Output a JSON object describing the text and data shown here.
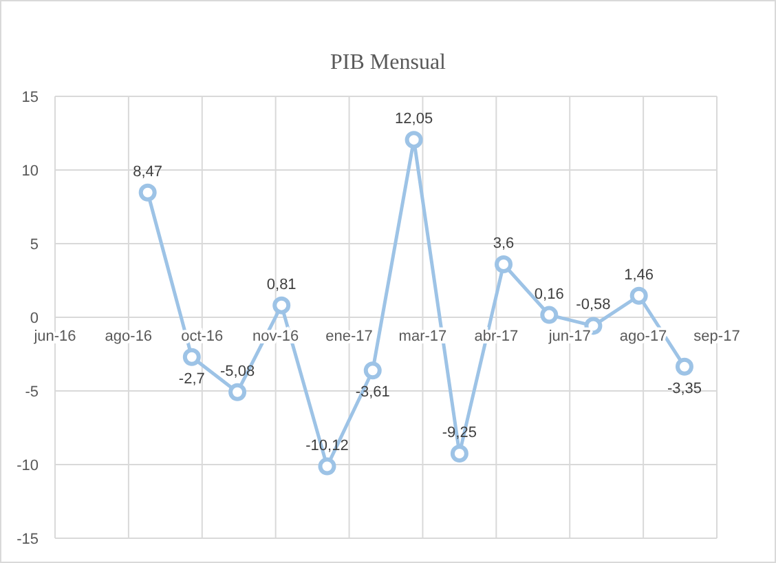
{
  "chart_data": {
    "type": "line",
    "title": "PIB Mensual",
    "x": [
      "2016-09-01",
      "2016-10-01",
      "2016-11-01",
      "2016-12-01",
      "2017-01-01",
      "2017-02-01",
      "2017-03-01",
      "2017-04-01",
      "2017-05-01",
      "2017-06-01",
      "2017-07-01",
      "2017-08-01",
      "2017-09-01"
    ],
    "series": [
      {
        "color": "#9dc3e6",
        "values": [
          8.47,
          -2.7,
          -5.08,
          0.81,
          -10.12,
          -3.61,
          12.05,
          -9.25,
          3.6,
          0.16,
          -0.58,
          1.46,
          -3.35
        ],
        "value_labels": [
          "8,47",
          "-2,7",
          "-5,08",
          "0,81",
          "-10,12",
          "-3,61",
          "12,05",
          "-9,25",
          "3,6",
          "0,16",
          "-0,58",
          "1,46",
          "-3,35"
        ]
      }
    ],
    "xlim": [
      "2016-06-30",
      "2017-09-23"
    ],
    "xticks": [
      {
        "value": "2016-06-30",
        "label": "jun-16"
      },
      {
        "value": "2016-08-19",
        "label": "ago-16"
      },
      {
        "value": "2016-10-08",
        "label": "oct-16"
      },
      {
        "value": "2016-11-27",
        "label": "nov-16"
      },
      {
        "value": "2017-01-16",
        "label": "ene-17"
      },
      {
        "value": "2017-03-07",
        "label": "mar-17"
      },
      {
        "value": "2017-04-26",
        "label": "abr-17"
      },
      {
        "value": "2017-06-15",
        "label": "jun-17"
      },
      {
        "value": "2017-08-04",
        "label": "ago-17"
      },
      {
        "value": "2017-09-23",
        "label": "sep-17"
      }
    ],
    "ylim": [
      -15,
      15
    ],
    "yticks": [
      -15,
      -10,
      -5,
      0,
      5,
      10,
      15
    ],
    "grid": true,
    "marker": "circle",
    "line_style": "solid"
  }
}
